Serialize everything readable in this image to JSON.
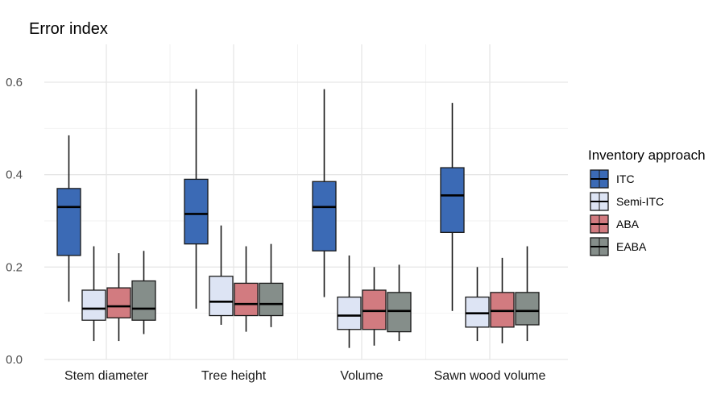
{
  "chart_data": {
    "type": "boxplot",
    "title": "Error index",
    "xlabel": "",
    "ylabel": "",
    "ylim": [
      0,
      0.6
    ],
    "y_ticks": [
      "0.0",
      "0.2",
      "0.4",
      "0.6"
    ],
    "grid": true,
    "categories": [
      "Stem diameter",
      "Tree height",
      "Volume",
      "Sawn wood volume"
    ],
    "legend": {
      "title": "Inventory approach",
      "position": "right"
    },
    "series": [
      {
        "name": "ITC",
        "color": "#3b6ab5",
        "boxes": [
          {
            "min": 0.125,
            "q1": 0.225,
            "median": 0.33,
            "q3": 0.37,
            "max": 0.485
          },
          {
            "min": 0.11,
            "q1": 0.25,
            "median": 0.315,
            "q3": 0.39,
            "max": 0.585
          },
          {
            "min": 0.135,
            "q1": 0.235,
            "median": 0.33,
            "q3": 0.385,
            "max": 0.585
          },
          {
            "min": 0.105,
            "q1": 0.275,
            "median": 0.355,
            "q3": 0.415,
            "max": 0.555
          }
        ]
      },
      {
        "name": "Semi-ITC",
        "color": "#dde4f4",
        "boxes": [
          {
            "min": 0.04,
            "q1": 0.085,
            "median": 0.11,
            "q3": 0.15,
            "max": 0.245
          },
          {
            "min": 0.075,
            "q1": 0.095,
            "median": 0.125,
            "q3": 0.18,
            "max": 0.29
          },
          {
            "min": 0.025,
            "q1": 0.065,
            "median": 0.095,
            "q3": 0.135,
            "max": 0.225
          },
          {
            "min": 0.04,
            "q1": 0.07,
            "median": 0.1,
            "q3": 0.135,
            "max": 0.2
          }
        ]
      },
      {
        "name": "ABA",
        "color": "#d27b80",
        "boxes": [
          {
            "min": 0.04,
            "q1": 0.09,
            "median": 0.115,
            "q3": 0.155,
            "max": 0.23
          },
          {
            "min": 0.06,
            "q1": 0.095,
            "median": 0.12,
            "q3": 0.165,
            "max": 0.245
          },
          {
            "min": 0.03,
            "q1": 0.065,
            "median": 0.105,
            "q3": 0.15,
            "max": 0.2
          },
          {
            "min": 0.035,
            "q1": 0.07,
            "median": 0.105,
            "q3": 0.145,
            "max": 0.22
          }
        ]
      },
      {
        "name": "EABA",
        "color": "#858e8a",
        "boxes": [
          {
            "min": 0.055,
            "q1": 0.085,
            "median": 0.11,
            "q3": 0.17,
            "max": 0.235
          },
          {
            "min": 0.07,
            "q1": 0.095,
            "median": 0.12,
            "q3": 0.165,
            "max": 0.25
          },
          {
            "min": 0.04,
            "q1": 0.06,
            "median": 0.105,
            "q3": 0.145,
            "max": 0.205
          },
          {
            "min": 0.04,
            "q1": 0.075,
            "median": 0.105,
            "q3": 0.145,
            "max": 0.245
          }
        ]
      }
    ]
  }
}
